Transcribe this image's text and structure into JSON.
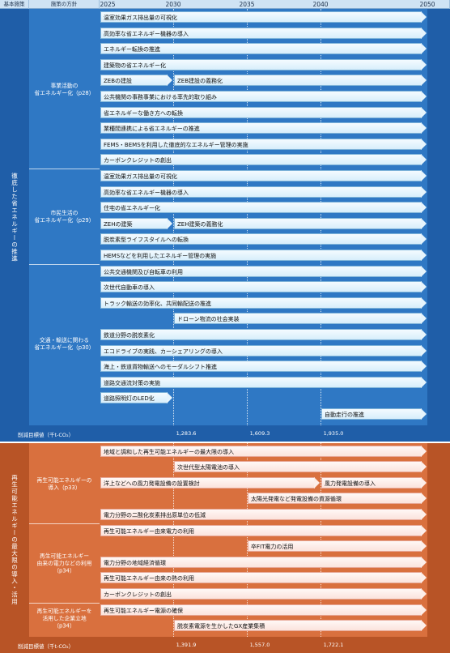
{
  "header": {
    "col1": "基本施策",
    "col2": "施策の方針",
    "years": [
      "2025",
      "2030",
      "2035",
      "2040",
      "2050"
    ]
  },
  "section1": {
    "title": "徹底した省エネルギーの推進",
    "groups": [
      {
        "label": "事業活動の\n省エネルギー化（p28）",
        "items": [
          [
            {
              "text": "温室効果ガス排出量の可視化",
              "start": "2025",
              "end": "2050"
            }
          ],
          [
            {
              "text": "高効率な省エネルギー機器の導入",
              "start": "2025",
              "end": "2050"
            }
          ],
          [
            {
              "text": "エネルギー転換の推進",
              "start": "2025",
              "end": "2050"
            }
          ],
          [
            {
              "text": "建築物の省エネルギー化",
              "start": "2025",
              "end": "2050"
            }
          ],
          [
            {
              "text": "ZEBの建設",
              "start": "2025",
              "end": "2030"
            },
            {
              "text": "ZEB建設の義務化",
              "start": "2030",
              "end": "2050"
            }
          ],
          [
            {
              "text": "公共機関の事務事業における率先的取り組み",
              "start": "2025",
              "end": "2050"
            }
          ],
          [
            {
              "text": "省エネルギーな働き方への転換",
              "start": "2025",
              "end": "2050"
            }
          ],
          [
            {
              "text": "業種間連携による省エネルギーの推進",
              "start": "2025",
              "end": "2050"
            }
          ],
          [
            {
              "text": "FEMS・BEMSを利用した徹底的なエネルギー管理の実施",
              "start": "2025",
              "end": "2050"
            }
          ],
          [
            {
              "text": "カーボンクレジットの創出",
              "start": "2025",
              "end": "2050"
            }
          ]
        ]
      },
      {
        "label": "市民生活の\n省エネルギー化（p29）",
        "items": [
          [
            {
              "text": "温室効果ガス排出量の可視化",
              "start": "2025",
              "end": "2050"
            }
          ],
          [
            {
              "text": "高効率な省エネルギー機器の導入",
              "start": "2025",
              "end": "2050"
            }
          ],
          [
            {
              "text": "住宅の省エネルギー化",
              "start": "2025",
              "end": "2050"
            }
          ],
          [
            {
              "text": "ZEHの建築",
              "start": "2025",
              "end": "2030"
            },
            {
              "text": "ZEH建築の義務化",
              "start": "2030",
              "end": "2050"
            }
          ],
          [
            {
              "text": "脱炭素型ライフスタイルへの転換",
              "start": "2025",
              "end": "2050"
            }
          ],
          [
            {
              "text": "HEMSなどを利用したエネルギー管理の実施",
              "start": "2025",
              "end": "2050"
            }
          ]
        ]
      },
      {
        "label": "交通・輸送に関わる\n省エネルギー化（p30）",
        "items": [
          [
            {
              "text": "公共交通機関及び自転車の利用",
              "start": "2025",
              "end": "2050"
            }
          ],
          [
            {
              "text": "次世代自動車の導入",
              "start": "2025",
              "end": "2050"
            }
          ],
          [
            {
              "text": "トラック輸送の効率化、共同輸配送の推進",
              "start": "2025",
              "end": "2050"
            }
          ],
          [
            {
              "text": "ドローン物流の社会実装",
              "start": "2030",
              "end": "2050"
            }
          ],
          [
            {
              "text": "鉄道分野の脱炭素化",
              "start": "2025",
              "end": "2050"
            }
          ],
          [
            {
              "text": "エコドライブの実践、カーシェアリングの導入",
              "start": "2025",
              "end": "2050"
            }
          ],
          [
            {
              "text": "海上・鉄道貨物輸送へのモーダルシフト推進",
              "start": "2025",
              "end": "2050"
            }
          ],
          [
            {
              "text": "道路交通流対策の実施",
              "start": "2025",
              "end": "2050"
            }
          ],
          [
            {
              "text": "道路照明灯のLED化",
              "start": "2025",
              "end": "2030"
            }
          ],
          [
            {
              "text": "自動走行の推進",
              "start": "2040",
              "end": "2050"
            }
          ]
        ]
      }
    ],
    "target": {
      "label": "削減目標値（千t-CO₂）",
      "values": [
        {
          "year": "2030",
          "text": "1,283.6"
        },
        {
          "year": "2035",
          "text": "1,609.3"
        },
        {
          "year": "2040",
          "text": "1,935.0"
        }
      ]
    }
  },
  "section2": {
    "title": "再生可能エネルギーの最大限の導入・活用",
    "groups": [
      {
        "label": "再生可能エネルギーの\n導入（p33）",
        "items": [
          [
            {
              "text": "地域と調和した再生可能エネルギーの最大限の導入",
              "start": "2025",
              "end": "2050"
            }
          ],
          [
            {
              "text": "次世代型太陽電池の導入",
              "start": "2030",
              "end": "2050"
            }
          ],
          [
            {
              "text": "洋上などへの風力発電設備の設置検討",
              "start": "2025",
              "end": "2040"
            },
            {
              "text": "風力発電設備の導入",
              "start": "2040",
              "end": "2050"
            }
          ],
          [
            {
              "text": "太陽光発電など発電設備の資源循環",
              "start": "2035",
              "end": "2050"
            }
          ],
          [
            {
              "text": "電力分野の二酸化炭素排出原単位の低減",
              "start": "2025",
              "end": "2050"
            }
          ]
        ]
      },
      {
        "label": "再生可能エネルギー\n由来の電力などの利用\n（p34）",
        "items": [
          [
            {
              "text": "再生可能エネルギー由来電力の利用",
              "start": "2025",
              "end": "2050"
            }
          ],
          [
            {
              "text": "卒FIT電力の活用",
              "start": "2035",
              "end": "2050"
            }
          ],
          [
            {
              "text": "電力分野の地域経済循環",
              "start": "2025",
              "end": "2050"
            }
          ],
          [
            {
              "text": "再生可能エネルギー由来の熱の利用",
              "start": "2025",
              "end": "2050"
            }
          ],
          [
            {
              "text": "カーボンクレジットの創出",
              "start": "2025",
              "end": "2050"
            }
          ]
        ]
      },
      {
        "label": "再生可能エネルギーを\n活用した企業立地\n（p34）",
        "items": [
          [
            {
              "text": "再生可能エネルギー電源の確保",
              "start": "2025",
              "end": "2050"
            }
          ],
          [
            {
              "text": "脱炭素電源を生かしたGX産業集積",
              "start": "2030",
              "end": "2050"
            }
          ]
        ]
      }
    ],
    "target": {
      "label": "削減目標値（千t-CO₂）",
      "values": [
        {
          "year": "2030",
          "text": "1,391.9"
        },
        {
          "year": "2035",
          "text": "1,557.0"
        },
        {
          "year": "2040",
          "text": "1,722.1"
        }
      ]
    }
  },
  "colors": {
    "blue_band": "#2f78c4",
    "blue_dark": "#1f5ea8",
    "blue_bar_fill": "#dff2fc",
    "orange_band": "#d9703e",
    "orange_dark": "#b85426",
    "orange_bar_fill": "#fde8e1",
    "header_fill": "#cfe3f4"
  }
}
